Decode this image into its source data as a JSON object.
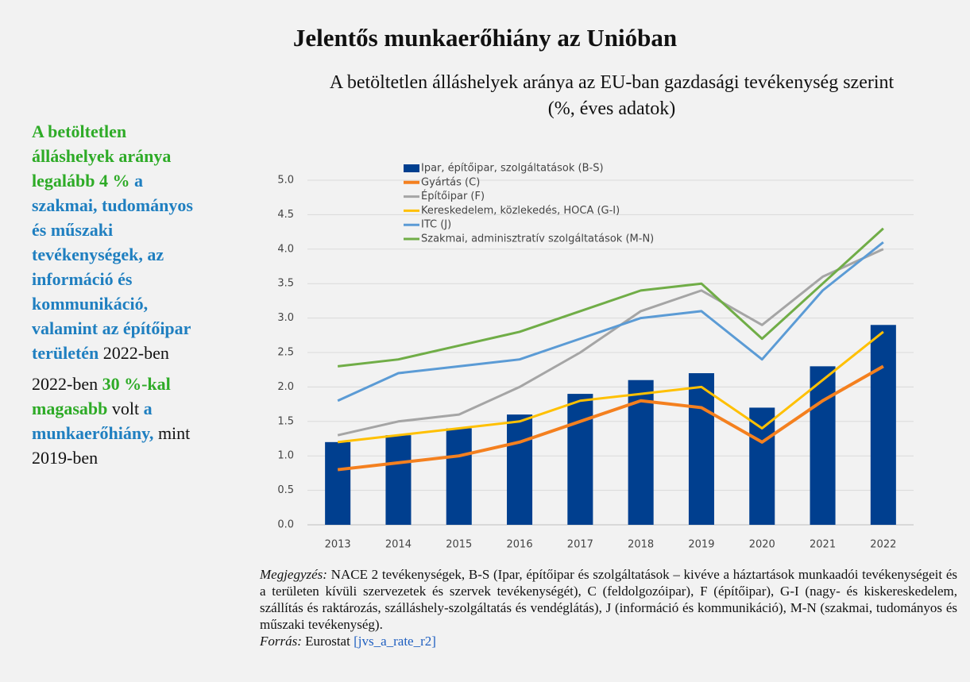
{
  "header": {
    "title": "Jelentős munkaerőhiány az Unióban"
  },
  "sidebar": {
    "paragraphs": [
      [
        {
          "text": "A betöltetlen álláshelyek aránya legalább 4 %",
          "tone": "green"
        },
        {
          "text": "a szakmai, tudományos és műszaki tevékenységek, az információ és kommunikáció, valamint az építőipar területén",
          "tone": "blue"
        },
        {
          "text": "2022-ben",
          "tone": "plain"
        }
      ],
      [
        {
          "text": "2022-ben",
          "tone": "plain"
        },
        {
          "text": "30 %-kal magasabb",
          "tone": "green"
        },
        {
          "text": "volt",
          "tone": "plain"
        },
        {
          "text": "a munkaerőhiány,",
          "tone": "blue"
        },
        {
          "text": "mint 2019-ben",
          "tone": "plain"
        }
      ]
    ]
  },
  "chart_data": {
    "type": "bar-line",
    "title": "A betöltetlen álláshelyek aránya az EU-ban gazdasági tevékenység szerint",
    "subtitle": "(%, éves adatok)",
    "categories": [
      "2013",
      "2014",
      "2015",
      "2016",
      "2017",
      "2018",
      "2019",
      "2020",
      "2021",
      "2022"
    ],
    "series": [
      {
        "name": "Ipar, építőipar, szolgáltatások (B-S)",
        "type": "bar",
        "color": "#003f8f",
        "values": [
          1.2,
          1.3,
          1.4,
          1.6,
          1.9,
          2.1,
          2.2,
          1.7,
          2.3,
          2.9
        ]
      },
      {
        "name": "Gyártás (C)",
        "type": "line",
        "color": "#f4801f",
        "width": 4,
        "values": [
          0.8,
          0.9,
          1.0,
          1.2,
          1.5,
          1.8,
          1.7,
          1.2,
          1.8,
          2.3
        ]
      },
      {
        "name": "Építőipar (F)",
        "type": "line",
        "color": "#a5a5a5",
        "width": 3,
        "values": [
          1.3,
          1.5,
          1.6,
          2.0,
          2.5,
          3.1,
          3.4,
          2.9,
          3.6,
          4.0
        ]
      },
      {
        "name": "Kereskedelem, közlekedés, HOCA (G-I)",
        "type": "line",
        "color": "#ffc000",
        "width": 3,
        "values": [
          1.2,
          1.3,
          1.4,
          1.5,
          1.8,
          1.9,
          2.0,
          1.4,
          2.1,
          2.8
        ]
      },
      {
        "name": "ITC (J)",
        "type": "line",
        "color": "#5b9bd5",
        "width": 3,
        "values": [
          1.8,
          2.2,
          2.3,
          2.4,
          2.7,
          3.0,
          3.1,
          2.4,
          3.4,
          4.1
        ]
      },
      {
        "name": "Szakmai, adminisztratív szolgáltatások (M-N)",
        "type": "line",
        "color": "#70ad47",
        "width": 3,
        "values": [
          2.3,
          2.4,
          2.6,
          2.8,
          3.1,
          3.4,
          3.5,
          2.7,
          3.5,
          4.3
        ]
      }
    ],
    "ylim": [
      0,
      5
    ],
    "yticks": [
      {
        "value": 0,
        "label": "0.0"
      },
      0.5,
      {
        "value": 1,
        "label": "1.0"
      },
      1.5,
      {
        "value": 2,
        "label": "2.0"
      },
      2.5,
      {
        "value": 3,
        "label": "3.0"
      },
      3.5,
      {
        "value": 4,
        "label": "4.0"
      },
      4.5,
      {
        "value": 5,
        "label": "5.0"
      }
    ],
    "grid": true,
    "legend": "top-left"
  },
  "note": {
    "label": "Megjegyzés:",
    "text": "NACE 2 tevékenységek, B-S (Ipar, építőipar és szolgáltatások – kivéve a háztartások munkaadói tevékenységeit és a területen kívüli szervezetek és szervek tevékenységét), C (feldolgozóipar), F (építőipar), G-I (nagy- és kiskereskedelem, szállítás és raktározás, szálláshely-szolgáltatás és vendéglátás), J (információ és kommunikáció), M-N (szakmai, tudományos és műszaki tevékenység).",
    "source_label": "Forrás:",
    "source": "Eurostat",
    "source_link": "[jvs_a_rate_r2]"
  }
}
